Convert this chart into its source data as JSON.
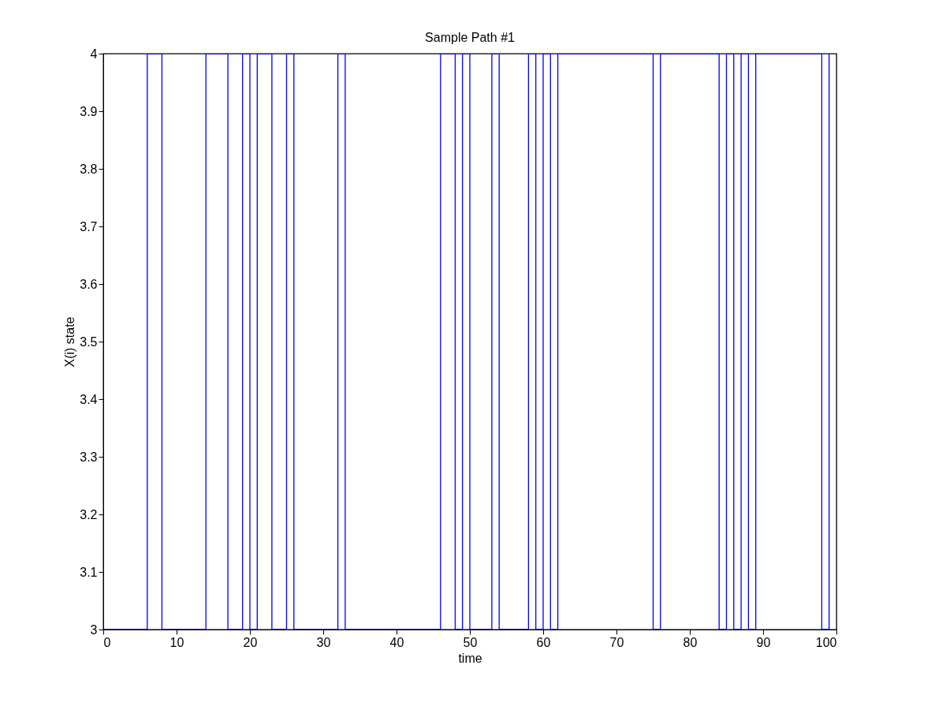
{
  "chart_data": {
    "type": "step",
    "title": "Sample Path #1",
    "xlabel": "time",
    "ylabel": "X(i) state",
    "x": [
      0,
      6,
      8,
      14,
      17,
      19,
      20,
      21,
      23,
      25,
      26,
      32,
      33,
      46,
      48,
      49,
      50,
      53,
      54,
      58,
      59,
      60,
      61,
      62,
      75,
      76,
      84,
      85,
      86,
      87,
      88,
      89,
      98,
      99
    ],
    "series": [
      {
        "color": "#0000ff",
        "values": [
          3,
          4,
          3,
          4,
          3,
          4,
          3,
          4,
          3,
          4,
          3,
          4,
          3,
          4,
          3,
          4,
          3,
          4,
          3,
          4,
          3,
          4,
          3,
          4,
          3,
          4,
          3,
          4,
          3,
          4,
          3,
          4,
          3,
          4
        ]
      }
    ],
    "xlim": [
      0,
      100
    ],
    "xticks": [
      0,
      10,
      20,
      30,
      40,
      50,
      60,
      70,
      80,
      90,
      100
    ],
    "ylim": [
      3,
      4
    ],
    "yticks": [
      3,
      3.1,
      3.2,
      3.3,
      3.4,
      3.5,
      3.6,
      3.7,
      3.8,
      3.9,
      4
    ],
    "grid": false,
    "marker": "none",
    "line_style": "solid"
  }
}
